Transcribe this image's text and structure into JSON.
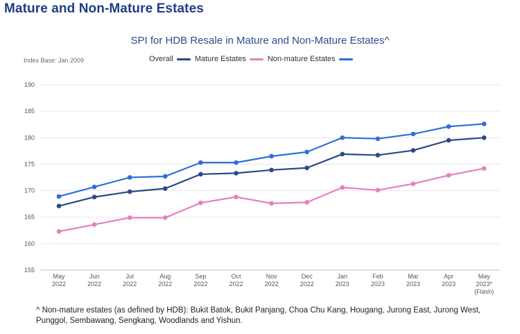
{
  "heading": "Mature and Non-Mature Estates",
  "index_base": "Index Base: Jan 2009",
  "footnote": "^ Non-mature estates (as defined by HDB): Bukit Batok, Bukit Panjang, Choa Chu Kang, Hougang, Jurong East, Jurong West, Punggol, Sembawang, Sengkang, Woodlands and Yishun.",
  "legend": [
    {
      "label": "Overall",
      "color": "#2a4a85"
    },
    {
      "label": "Mature Estates",
      "color": "#e580bd"
    },
    {
      "label": "Non-mature Estates",
      "color": "#2f6fd9"
    }
  ],
  "chart_data": {
    "type": "line",
    "title": "SPI for HDB Resale in Mature and Non-Mature Estates^",
    "xlabel": "",
    "ylabel": "",
    "categories": [
      [
        "May",
        "2022"
      ],
      [
        "Jun",
        "2022"
      ],
      [
        "Jul",
        "2022"
      ],
      [
        "Aug",
        "2022"
      ],
      [
        "Sep",
        "2022"
      ],
      [
        "Oct",
        "2022"
      ],
      [
        "Nov",
        "2022"
      ],
      [
        "Dec",
        "2022"
      ],
      [
        "Jan",
        "2023"
      ],
      [
        "Feb",
        "2023"
      ],
      [
        "Mar",
        "2023"
      ],
      [
        "Apr",
        "2023"
      ],
      [
        "May",
        "2023*",
        "(Flash)"
      ]
    ],
    "ylim": [
      155,
      190
    ],
    "yticks": [
      155,
      160,
      165,
      170,
      175,
      180,
      185,
      190
    ],
    "grid": true,
    "legend_position": "top",
    "series": [
      {
        "name": "Overall",
        "color": "#2a4a85",
        "values": [
          167.1,
          168.8,
          169.8,
          170.4,
          173.1,
          173.3,
          173.9,
          174.3,
          176.9,
          176.7,
          177.6,
          179.5,
          180.0
        ]
      },
      {
        "name": "Mature Estates",
        "color": "#e580bd",
        "values": [
          162.3,
          163.6,
          164.9,
          164.9,
          167.7,
          168.8,
          167.6,
          167.8,
          170.6,
          170.1,
          171.3,
          172.9,
          174.2
        ]
      },
      {
        "name": "Non-mature Estates",
        "color": "#2f6fd9",
        "values": [
          168.9,
          170.7,
          172.5,
          172.7,
          175.3,
          175.3,
          176.5,
          177.3,
          180.0,
          179.8,
          180.7,
          182.1,
          182.6
        ]
      }
    ]
  }
}
